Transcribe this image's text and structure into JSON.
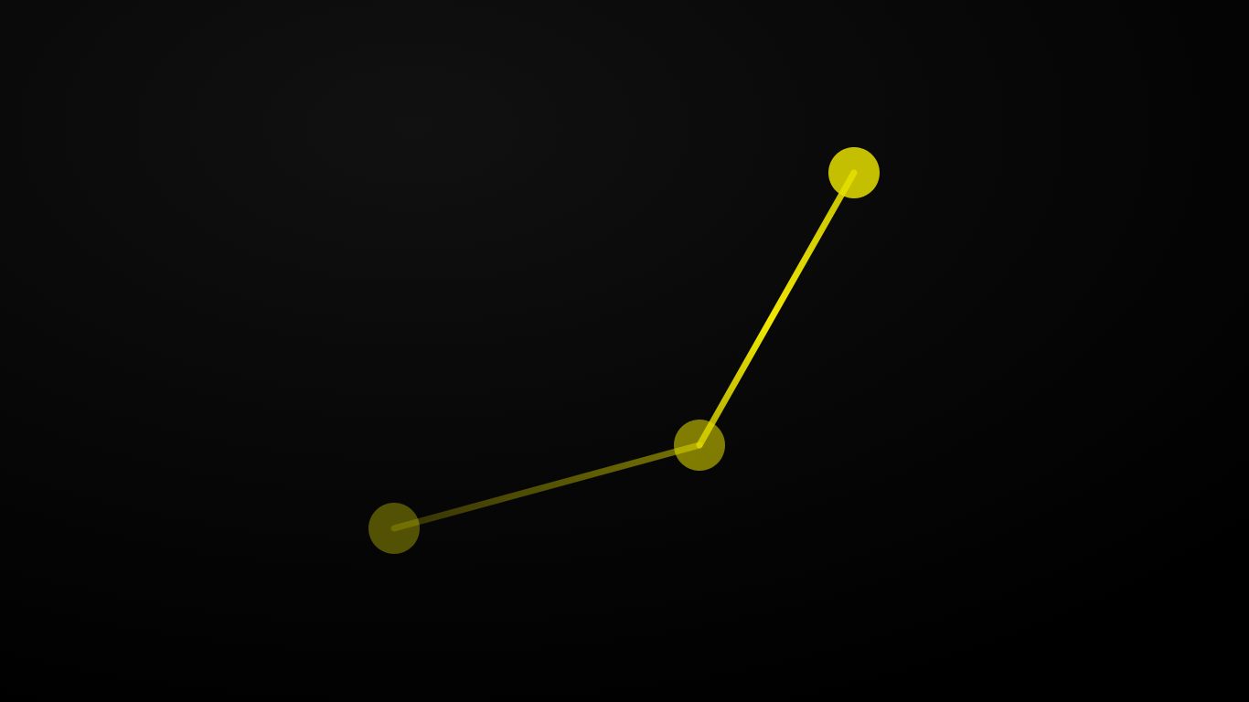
{
  "colors": {
    "background_light": "#111111",
    "background_dark": "#000000",
    "accent": "#e6df00",
    "accent_dim": "#4a4506"
  },
  "nodes": [
    {
      "name": "node-bottom-left",
      "opacity": 0.35
    },
    {
      "name": "node-middle",
      "opacity": 0.55
    },
    {
      "name": "node-top-right",
      "opacity": 0.85
    }
  ],
  "links": [
    {
      "from": 0,
      "to": 1
    },
    {
      "from": 1,
      "to": 2
    }
  ]
}
